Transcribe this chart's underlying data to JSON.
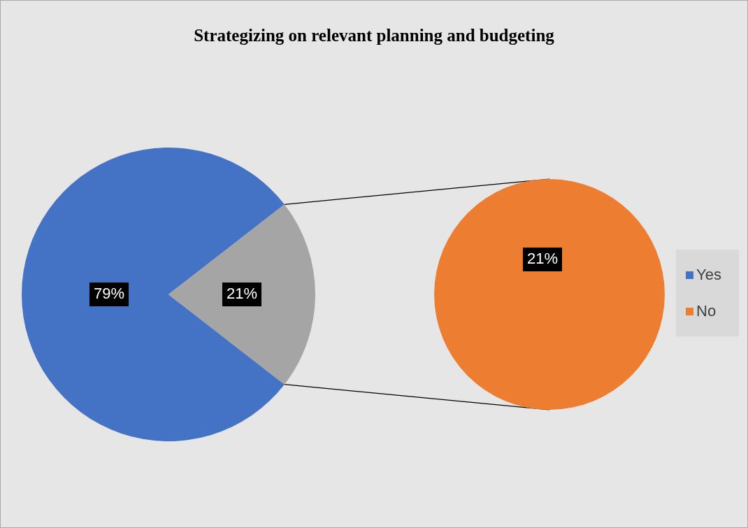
{
  "chart_data": [
    {
      "type": "pie",
      "title": "Strategizing on relevant planning and budgeting",
      "categories": [
        "Yes",
        null
      ],
      "values": [
        79,
        21
      ],
      "value_labels": [
        "79%",
        "21%"
      ],
      "colors": [
        "#4472c4",
        "#a5a5a5"
      ],
      "legend": "right"
    },
    {
      "type": "pie",
      "categories": [
        "No"
      ],
      "values": [
        21
      ],
      "value_labels": [
        "21%"
      ],
      "colors": [
        "#ed7d31"
      ],
      "legend": "right"
    }
  ]
}
